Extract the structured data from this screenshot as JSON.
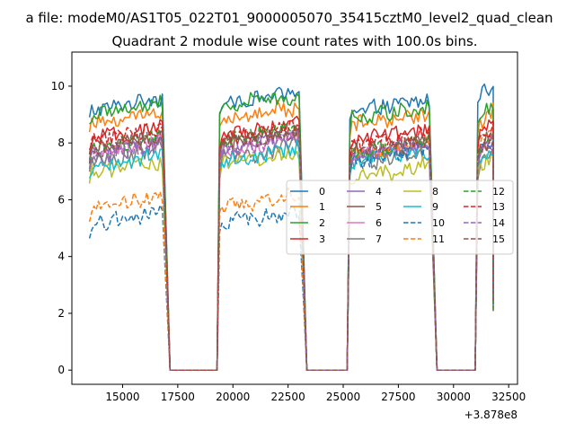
{
  "figure": {
    "suptitle": "a file: modeM0/AS1T05_022T01_9000005070_35415cztM0_level2_quad_clean",
    "x_offset_label": "+3.878e8"
  },
  "chart_data": {
    "type": "line",
    "title": "Quadrant 2 module wise count rates with 100.0s bins.",
    "xlabel": "",
    "ylabel": "",
    "xlim": [
      12700,
      32900
    ],
    "ylim": [
      -0.5,
      11.2
    ],
    "x_ticks": [
      15000,
      17500,
      20000,
      22500,
      25000,
      27500,
      30000,
      32500
    ],
    "y_ticks": [
      0,
      2,
      4,
      6,
      8,
      10
    ],
    "grid": false,
    "legend_location": "center-right",
    "legend_columns": 4,
    "segments": [
      {
        "x_start": 13500,
        "x_end": 16800
      },
      {
        "x_start": 19400,
        "x_end": 23000
      },
      {
        "x_start": 25300,
        "x_end": 28900
      },
      {
        "x_start": 31100,
        "x_end": 31800
      }
    ],
    "gap_value": 0,
    "series": [
      {
        "name": "0",
        "color": "#1f77b4",
        "dash": "solid",
        "levels": [
          9.4,
          9.6,
          9.3,
          9.9
        ]
      },
      {
        "name": "1",
        "color": "#ff7f0e",
        "dash": "solid",
        "levels": [
          8.9,
          9.1,
          8.8,
          9.0
        ]
      },
      {
        "name": "2",
        "color": "#2ca02c",
        "dash": "solid",
        "levels": [
          9.2,
          9.5,
          9.1,
          9.2
        ]
      },
      {
        "name": "3",
        "color": "#d62728",
        "dash": "solid",
        "levels": [
          8.3,
          8.5,
          8.3,
          8.5
        ]
      },
      {
        "name": "4",
        "color": "#9467bd",
        "dash": "solid",
        "levels": [
          7.7,
          8.0,
          7.7,
          7.8
        ]
      },
      {
        "name": "5",
        "color": "#8c564b",
        "dash": "solid",
        "levels": [
          8.0,
          8.2,
          7.9,
          8.1
        ]
      },
      {
        "name": "6",
        "color": "#e377c2",
        "dash": "solid",
        "levels": [
          7.9,
          8.0,
          7.8,
          7.9
        ]
      },
      {
        "name": "7",
        "color": "#7f7f7f",
        "dash": "solid",
        "levels": [
          7.6,
          7.7,
          7.5,
          7.5
        ]
      },
      {
        "name": "8",
        "color": "#bcbd22",
        "dash": "solid",
        "levels": [
          7.2,
          7.4,
          7.0,
          7.4
        ]
      },
      {
        "name": "9",
        "color": "#17becf",
        "dash": "solid",
        "levels": [
          7.4,
          7.6,
          7.5,
          7.6
        ]
      },
      {
        "name": "10",
        "color": "#1f77b4",
        "dash": "dashed",
        "levels": [
          5.3,
          5.4,
          7.6,
          7.9
        ]
      },
      {
        "name": "11",
        "color": "#ff7f0e",
        "dash": "dashed",
        "levels": [
          5.9,
          6.0,
          7.8,
          8.1
        ]
      },
      {
        "name": "12",
        "color": "#2ca02c",
        "dash": "dashed",
        "levels": [
          8.1,
          8.3,
          7.9,
          8.2
        ]
      },
      {
        "name": "13",
        "color": "#d62728",
        "dash": "dashed",
        "levels": [
          8.3,
          8.4,
          8.1,
          8.4
        ]
      },
      {
        "name": "14",
        "color": "#9467bd",
        "dash": "dashed",
        "levels": [
          7.8,
          8.0,
          7.8,
          7.9
        ]
      },
      {
        "name": "15",
        "color": "#8c564b",
        "dash": "dashed",
        "levels": [
          8.0,
          8.2,
          7.9,
          8.0
        ]
      }
    ]
  }
}
